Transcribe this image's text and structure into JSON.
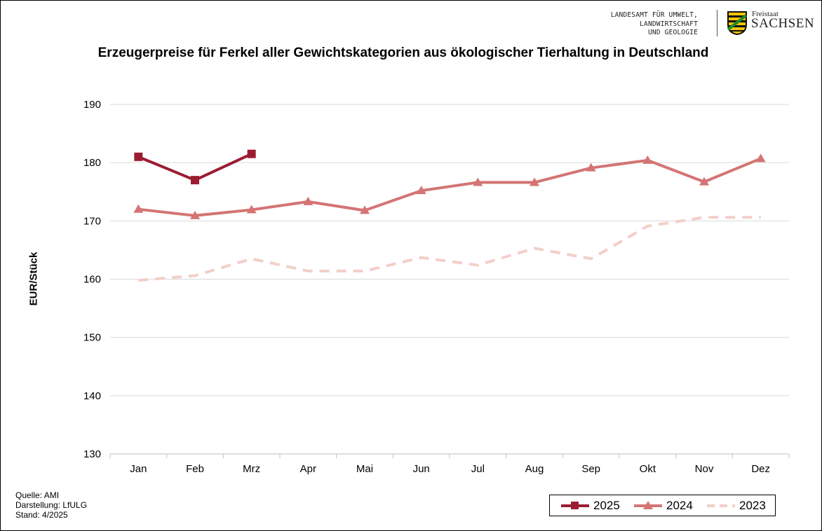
{
  "header": {
    "agency_lines": [
      "LANDESAMT FÜR UMWELT,",
      "LANDWIRTSCHAFT",
      "UND GEOLOGIE"
    ],
    "state_small": "Freistaat",
    "state_big": "SACHSEN",
    "crest_icon": "saxony-coat-of-arms-icon"
  },
  "notes": {
    "source": "Quelle: AMI",
    "made_by": "Darstellung: LfULG",
    "as_of": "Stand: 4/2025"
  },
  "colors": {
    "s2025": "#9b1c31",
    "s2024": "#d47474",
    "s2023": "#f2cfc8",
    "grid": "#d9d9d9"
  },
  "chart_data": {
    "type": "line",
    "title": "Erzeugerpreise für Ferkel aller Gewichtskategorien aus ökologischer Tierhaltung in Deutschland",
    "xlabel": "",
    "ylabel": "EUR/Stück",
    "categories": [
      "Jan",
      "Feb",
      "Mrz",
      "Apr",
      "Mai",
      "Jun",
      "Jul",
      "Aug",
      "Sep",
      "Okt",
      "Nov",
      "Dez"
    ],
    "ylim": [
      130,
      190
    ],
    "yticks": [
      130,
      140,
      150,
      160,
      170,
      180,
      190
    ],
    "grid": true,
    "legend_position": "bottom-right",
    "series": [
      {
        "name": "2025",
        "marker": "square",
        "style": "solid",
        "values": [
          181.0,
          177.0,
          181.5,
          null,
          null,
          null,
          null,
          null,
          null,
          null,
          null,
          null
        ]
      },
      {
        "name": "2024",
        "marker": "triangle",
        "style": "solid",
        "values": [
          172.0,
          170.9,
          171.9,
          173.3,
          171.8,
          175.2,
          176.6,
          176.6,
          179.1,
          180.4,
          176.7,
          180.7
        ]
      },
      {
        "name": "2023",
        "marker": "none",
        "style": "dashed",
        "values": [
          159.8,
          160.6,
          163.5,
          161.4,
          161.4,
          163.7,
          162.4,
          165.3,
          163.5,
          169.1,
          170.6,
          170.6
        ]
      }
    ]
  }
}
